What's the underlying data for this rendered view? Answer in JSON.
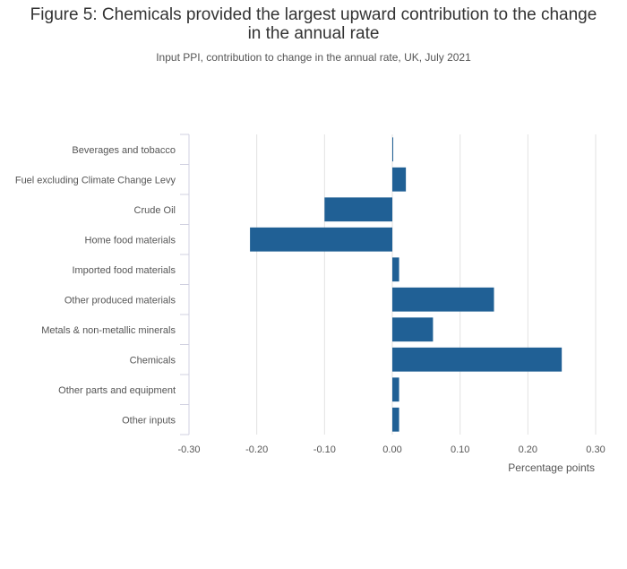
{
  "title_line1": "Figure 5: Chemicals provided the largest upward contribution to the change",
  "title_line2": "in the annual rate",
  "subtitle": "Input PPI, contribution to change in the annual rate, UK, July 2021",
  "chart_data": {
    "type": "bar",
    "orientation": "horizontal",
    "title": "Figure 5: Chemicals provided the largest upward contribution to the change in the annual rate",
    "subtitle": "Input PPI, contribution to change in the annual rate, UK, July 2021",
    "xlabel": "Percentage points",
    "ylabel": "",
    "xlim": [
      -0.3,
      0.3
    ],
    "ticks": [
      -0.3,
      -0.2,
      -0.1,
      0.0,
      0.1,
      0.2,
      0.3
    ],
    "tick_labels": [
      "-0.30",
      "-0.20",
      "-0.10",
      "0.00",
      "0.10",
      "0.20",
      "0.30"
    ],
    "grid": true,
    "categories": [
      "Beverages and tobacco",
      "Fuel excluding Climate Change Levy",
      "Crude Oil",
      "Home food materials",
      "Imported food materials",
      "Other produced materials",
      "Metals & non-metallic minerals",
      "Chemicals",
      "Other parts and equipment",
      "Other inputs"
    ],
    "values": [
      0.0,
      0.02,
      -0.1,
      -0.21,
      0.01,
      0.15,
      0.06,
      0.25,
      0.01,
      0.01
    ],
    "bar_color": "#206095"
  }
}
